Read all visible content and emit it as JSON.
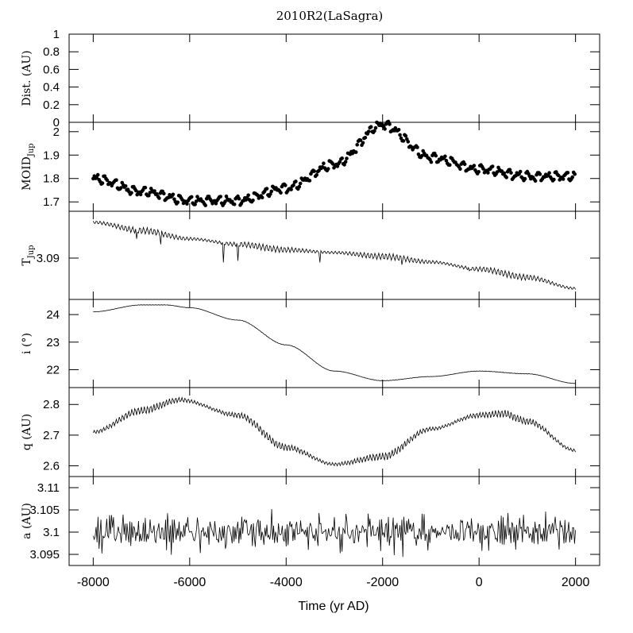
{
  "figure": {
    "title": "2010R2(LaSagra)",
    "xlabel": "Time (yr AD)"
  },
  "chart_data": {
    "type": "line",
    "x_axis": {
      "label": "Time (yr AD)",
      "range": [
        -8500,
        2500
      ],
      "ticks": [
        -8000,
        -6000,
        -4000,
        -2000,
        0,
        2000
      ],
      "tick_labels": [
        "-8000",
        "-6000",
        "-4000",
        "-2000",
        "0",
        "2000"
      ]
    },
    "panels": [
      {
        "id": "dist",
        "ylabel": "Dist. (AU)",
        "ylim": [
          0,
          1
        ],
        "ticks": [
          0,
          0.2,
          0.4,
          0.6,
          0.8,
          1
        ],
        "tick_labels": [
          "0",
          "0.2",
          "0.4",
          "0.6",
          "0.8",
          "1"
        ],
        "style": "none",
        "keypoints": []
      },
      {
        "id": "moid",
        "ylabel_main": "MOID",
        "ylabel_sub": "Jup",
        "ylim": [
          1.66,
          2.04
        ],
        "ticks": [
          1.7,
          1.8,
          1.9,
          2.0
        ],
        "tick_labels": [
          "1.7",
          "1.8",
          "1.9",
          "2"
        ],
        "style": "dots",
        "keypoints": [
          [
            -8000,
            1.8
          ],
          [
            -7000,
            1.745
          ],
          [
            -6000,
            1.705
          ],
          [
            -5000,
            1.705
          ],
          [
            -4000,
            1.76
          ],
          [
            -3000,
            1.86
          ],
          [
            -2000,
            2.03
          ],
          [
            -1000,
            1.89
          ],
          [
            0,
            1.84
          ],
          [
            1000,
            1.81
          ],
          [
            2000,
            1.81
          ]
        ],
        "spread": 0.025,
        "wiggle": 0.008,
        "period": 120
      },
      {
        "id": "tjup",
        "ylabel_main": "T",
        "ylabel_sub": "Jup",
        "ylim": [
          3.0825,
          3.0985
        ],
        "ticks": [
          3.09
        ],
        "tick_labels": [
          "3.09"
        ],
        "style": "line",
        "keypoints": [
          [
            -8000,
            3.0965
          ],
          [
            -7000,
            3.095
          ],
          [
            -6000,
            3.0935
          ],
          [
            -5000,
            3.0925
          ],
          [
            -4000,
            3.0915
          ],
          [
            -3000,
            3.091
          ],
          [
            -2000,
            3.0903
          ],
          [
            -1000,
            3.0893
          ],
          [
            0,
            3.088
          ],
          [
            1000,
            3.0865
          ],
          [
            2000,
            3.0845
          ]
        ],
        "wiggle": 0.0006,
        "period": 75,
        "spikes": [
          [
            -7100,
            3.0935
          ],
          [
            -6600,
            3.0925
          ],
          [
            -5300,
            3.0892
          ],
          [
            -5000,
            3.0895
          ],
          [
            -3300,
            3.0892
          ],
          [
            -1600,
            3.0888
          ],
          [
            -200,
            3.0877
          ]
        ]
      },
      {
        "id": "incl",
        "ylabel": "i (°)",
        "ylim": [
          21.35,
          24.55
        ],
        "ticks": [
          22,
          23,
          24
        ],
        "tick_labels": [
          "22",
          "23",
          "24"
        ],
        "style": "line",
        "keypoints": [
          [
            -8000,
            24.1
          ],
          [
            -7000,
            24.35
          ],
          [
            -6500,
            24.35
          ],
          [
            -6000,
            24.25
          ],
          [
            -5000,
            23.8
          ],
          [
            -4000,
            22.9
          ],
          [
            -3000,
            21.95
          ],
          [
            -2000,
            21.6
          ],
          [
            -1000,
            21.75
          ],
          [
            0,
            21.95
          ],
          [
            1000,
            21.85
          ],
          [
            2000,
            21.5
          ]
        ],
        "wiggle": 0.008,
        "period": 60
      },
      {
        "id": "q",
        "ylabel": "q (AU)",
        "ylim": [
          2.565,
          2.855
        ],
        "ticks": [
          2.6,
          2.7,
          2.8
        ],
        "tick_labels": [
          "2.6",
          "2.7",
          "2.8"
        ],
        "style": "line",
        "keypoints": [
          [
            -8000,
            2.71
          ],
          [
            -7000,
            2.78
          ],
          [
            -6200,
            2.815
          ],
          [
            -5000,
            2.765
          ],
          [
            -4000,
            2.66
          ],
          [
            -3000,
            2.605
          ],
          [
            -2000,
            2.63
          ],
          [
            -1000,
            2.72
          ],
          [
            0,
            2.765
          ],
          [
            500,
            2.77
          ],
          [
            1000,
            2.745
          ],
          [
            2000,
            2.65
          ]
        ],
        "wiggle": 0.013,
        "period": 65
      },
      {
        "id": "a",
        "ylabel": "a (AU)",
        "ylim": [
          3.0925,
          3.1125
        ],
        "ticks": [
          3.095,
          3.1,
          3.105,
          3.11
        ],
        "tick_labels": [
          "3.095",
          "3.1",
          "3.105",
          "3.11"
        ],
        "style": "line",
        "keypoints": [
          [
            -8000,
            3.1
          ],
          [
            2000,
            3.1
          ]
        ],
        "wiggle": 0.002,
        "period": 35,
        "noise": 0.0045
      }
    ]
  }
}
